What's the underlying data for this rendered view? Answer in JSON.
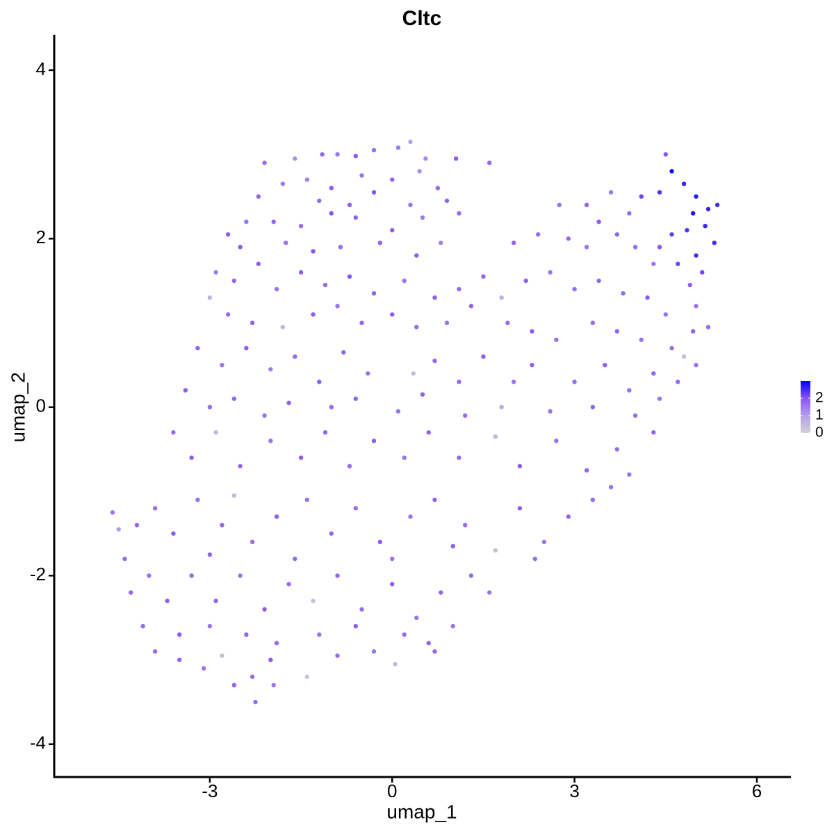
{
  "chart_data": {
    "type": "scatter",
    "title": "Cltc",
    "x_label": "umap_1",
    "y_label": "umap_2",
    "xlim": [
      -5.56,
      6.56
    ],
    "ylim": [
      -4.39,
      4.42
    ],
    "xticks": [
      -3,
      0,
      3,
      6
    ],
    "yticks": [
      -4,
      -2,
      0,
      2,
      4
    ],
    "colorlim": [
      0,
      3
    ],
    "colorticks": [
      0,
      1,
      2
    ],
    "color_stops": [
      "#d3d3d3",
      "#b39eec",
      "#8a55ef",
      "#0000ff"
    ],
    "points": [
      {
        "x": -2.1,
        "y": 2.9,
        "expression": 1.7
      },
      {
        "x": -1.6,
        "y": 2.95,
        "expression": 1.2
      },
      {
        "x": -1.15,
        "y": 3.0,
        "expression": 1.8
      },
      {
        "x": -0.9,
        "y": 3.0,
        "expression": 1.6
      },
      {
        "x": -0.6,
        "y": 2.98,
        "expression": 1.9
      },
      {
        "x": -0.3,
        "y": 3.05,
        "expression": 1.7
      },
      {
        "x": 0.1,
        "y": 3.08,
        "expression": 1.5
      },
      {
        "x": 0.3,
        "y": 3.15,
        "expression": 0.9
      },
      {
        "x": 0.55,
        "y": 2.95,
        "expression": 1.3
      },
      {
        "x": 1.05,
        "y": 2.95,
        "expression": 1.9
      },
      {
        "x": 1.6,
        "y": 2.9,
        "expression": 1.8
      },
      {
        "x": -1.8,
        "y": 2.65,
        "expression": 1.5
      },
      {
        "x": -1.4,
        "y": 2.7,
        "expression": 1.4
      },
      {
        "x": -1.0,
        "y": 2.6,
        "expression": 1.9
      },
      {
        "x": -0.5,
        "y": 2.75,
        "expression": 1.6
      },
      {
        "x": 0.0,
        "y": 2.7,
        "expression": 1.8
      },
      {
        "x": 0.45,
        "y": 2.8,
        "expression": 1.2
      },
      {
        "x": 0.75,
        "y": 2.6,
        "expression": 1.7
      },
      {
        "x": -2.2,
        "y": 2.5,
        "expression": 1.8
      },
      {
        "x": -1.2,
        "y": 2.45,
        "expression": 1.7
      },
      {
        "x": -0.7,
        "y": 2.4,
        "expression": 1.9
      },
      {
        "x": -0.3,
        "y": 2.55,
        "expression": 2.0
      },
      {
        "x": 0.3,
        "y": 2.4,
        "expression": 1.6
      },
      {
        "x": 0.9,
        "y": 2.45,
        "expression": 1.8
      },
      {
        "x": -2.7,
        "y": 2.05,
        "expression": 1.9
      },
      {
        "x": -2.4,
        "y": 2.2,
        "expression": 1.6
      },
      {
        "x": -1.95,
        "y": 2.2,
        "expression": 1.8
      },
      {
        "x": -1.5,
        "y": 2.15,
        "expression": 1.7
      },
      {
        "x": -1.0,
        "y": 2.3,
        "expression": 2.0
      },
      {
        "x": -0.6,
        "y": 2.25,
        "expression": 1.8
      },
      {
        "x": 0.0,
        "y": 2.1,
        "expression": 1.9
      },
      {
        "x": 0.5,
        "y": 2.25,
        "expression": 1.5
      },
      {
        "x": 1.1,
        "y": 2.3,
        "expression": 1.7
      },
      {
        "x": -2.5,
        "y": 1.9,
        "expression": 1.9
      },
      {
        "x": -1.75,
        "y": 1.95,
        "expression": 1.6
      },
      {
        "x": -1.3,
        "y": 1.85,
        "expression": 2.0
      },
      {
        "x": -0.85,
        "y": 1.9,
        "expression": 1.7
      },
      {
        "x": -0.2,
        "y": 1.95,
        "expression": 1.8
      },
      {
        "x": 0.4,
        "y": 1.8,
        "expression": 1.9
      },
      {
        "x": 0.8,
        "y": 1.95,
        "expression": 1.4
      },
      {
        "x": 2.0,
        "y": 1.95,
        "expression": 1.8
      },
      {
        "x": 2.4,
        "y": 2.05,
        "expression": 1.7
      },
      {
        "x": 2.75,
        "y": 2.4,
        "expression": 1.6
      },
      {
        "x": 3.2,
        "y": 2.4,
        "expression": 1.8
      },
      {
        "x": 3.6,
        "y": 2.55,
        "expression": 1.5
      },
      {
        "x": 3.4,
        "y": 2.2,
        "expression": 1.9
      },
      {
        "x": 3.9,
        "y": 2.3,
        "expression": 1.7
      },
      {
        "x": 4.1,
        "y": 2.5,
        "expression": 2.2
      },
      {
        "x": 4.4,
        "y": 2.55,
        "expression": 2.4
      },
      {
        "x": 4.5,
        "y": 3.0,
        "expression": 2.0
      },
      {
        "x": 4.6,
        "y": 2.8,
        "expression": 2.9
      },
      {
        "x": 4.8,
        "y": 2.65,
        "expression": 2.6
      },
      {
        "x": 5.0,
        "y": 2.5,
        "expression": 2.7
      },
      {
        "x": 5.2,
        "y": 2.35,
        "expression": 2.6
      },
      {
        "x": 5.35,
        "y": 2.4,
        "expression": 2.5
      },
      {
        "x": 4.95,
        "y": 2.3,
        "expression": 2.8
      },
      {
        "x": 5.15,
        "y": 2.15,
        "expression": 2.6
      },
      {
        "x": 5.3,
        "y": 1.95,
        "expression": 2.5
      },
      {
        "x": 4.85,
        "y": 2.1,
        "expression": 2.4
      },
      {
        "x": 4.6,
        "y": 2.05,
        "expression": 2.3
      },
      {
        "x": 5.0,
        "y": 1.8,
        "expression": 2.5
      },
      {
        "x": 4.7,
        "y": 1.7,
        "expression": 2.2
      },
      {
        "x": 4.4,
        "y": 1.9,
        "expression": 2.0
      },
      {
        "x": 4.0,
        "y": 1.9,
        "expression": 1.7
      },
      {
        "x": 3.7,
        "y": 2.05,
        "expression": 1.8
      },
      {
        "x": 3.2,
        "y": 1.9,
        "expression": 1.6
      },
      {
        "x": 2.9,
        "y": 2.0,
        "expression": 1.7
      },
      {
        "x": 5.1,
        "y": 1.6,
        "expression": 2.2
      },
      {
        "x": 4.9,
        "y": 1.45,
        "expression": 1.9
      },
      {
        "x": 4.3,
        "y": 1.7,
        "expression": 1.5
      },
      {
        "x": 4.8,
        "y": 0.6,
        "expression": 0.4
      },
      {
        "x": 4.95,
        "y": 0.9,
        "expression": 1.8
      },
      {
        "x": 5.2,
        "y": 0.95,
        "expression": 1.7
      },
      {
        "x": 5.0,
        "y": 1.2,
        "expression": 1.6
      },
      {
        "x": -3.0,
        "y": 1.3,
        "expression": 0.6
      },
      {
        "x": -2.9,
        "y": 1.6,
        "expression": 1.5
      },
      {
        "x": -2.6,
        "y": 1.5,
        "expression": 1.8
      },
      {
        "x": -2.2,
        "y": 1.7,
        "expression": 1.9
      },
      {
        "x": -1.9,
        "y": 1.4,
        "expression": 1.6
      },
      {
        "x": -1.5,
        "y": 1.6,
        "expression": 1.9
      },
      {
        "x": -1.1,
        "y": 1.45,
        "expression": 1.7
      },
      {
        "x": -0.7,
        "y": 1.55,
        "expression": 2.0
      },
      {
        "x": -0.3,
        "y": 1.35,
        "expression": 1.8
      },
      {
        "x": 0.2,
        "y": 1.5,
        "expression": 1.6
      },
      {
        "x": 0.7,
        "y": 1.3,
        "expression": 1.9
      },
      {
        "x": 1.1,
        "y": 1.4,
        "expression": 1.7
      },
      {
        "x": 1.5,
        "y": 1.55,
        "expression": 1.8
      },
      {
        "x": 1.8,
        "y": 1.3,
        "expression": 0.7
      },
      {
        "x": 2.2,
        "y": 1.5,
        "expression": 1.9
      },
      {
        "x": 2.6,
        "y": 1.6,
        "expression": 1.6
      },
      {
        "x": 3.0,
        "y": 1.4,
        "expression": 1.7
      },
      {
        "x": 3.4,
        "y": 1.5,
        "expression": 1.8
      },
      {
        "x": 3.8,
        "y": 1.35,
        "expression": 1.7
      },
      {
        "x": 4.2,
        "y": 1.3,
        "expression": 1.9
      },
      {
        "x": 4.5,
        "y": 1.1,
        "expression": 1.6
      },
      {
        "x": -2.7,
        "y": 1.1,
        "expression": 1.7
      },
      {
        "x": -2.3,
        "y": 1.0,
        "expression": 1.8
      },
      {
        "x": -1.8,
        "y": 0.95,
        "expression": 0.6
      },
      {
        "x": -1.3,
        "y": 1.1,
        "expression": 1.9
      },
      {
        "x": -0.9,
        "y": 1.2,
        "expression": 1.6
      },
      {
        "x": -0.5,
        "y": 1.0,
        "expression": 1.8
      },
      {
        "x": 0.0,
        "y": 1.1,
        "expression": 1.9
      },
      {
        "x": 0.4,
        "y": 0.95,
        "expression": 1.7
      },
      {
        "x": 0.9,
        "y": 1.0,
        "expression": 1.6
      },
      {
        "x": 1.3,
        "y": 1.2,
        "expression": 1.8
      },
      {
        "x": 1.9,
        "y": 1.0,
        "expression": 1.7
      },
      {
        "x": 2.3,
        "y": 0.9,
        "expression": 1.9
      },
      {
        "x": 2.7,
        "y": 0.8,
        "expression": 1.6
      },
      {
        "x": 3.3,
        "y": 1.0,
        "expression": 1.7
      },
      {
        "x": 3.7,
        "y": 0.9,
        "expression": 1.8
      },
      {
        "x": 4.1,
        "y": 0.8,
        "expression": 1.6
      },
      {
        "x": 4.6,
        "y": 0.7,
        "expression": 1.7
      },
      {
        "x": -3.2,
        "y": 0.7,
        "expression": 1.8
      },
      {
        "x": -2.8,
        "y": 0.5,
        "expression": 1.6
      },
      {
        "x": -2.4,
        "y": 0.7,
        "expression": 1.9
      },
      {
        "x": -2.0,
        "y": 0.45,
        "expression": 1.5
      },
      {
        "x": -1.6,
        "y": 0.6,
        "expression": 1.7
      },
      {
        "x": -1.2,
        "y": 0.3,
        "expression": 1.9
      },
      {
        "x": -0.8,
        "y": 0.65,
        "expression": 1.8
      },
      {
        "x": -0.4,
        "y": 0.4,
        "expression": 1.6
      },
      {
        "x": 0.35,
        "y": 0.4,
        "expression": 0.5
      },
      {
        "x": 0.7,
        "y": 0.55,
        "expression": 1.8
      },
      {
        "x": 1.1,
        "y": 0.3,
        "expression": 1.7
      },
      {
        "x": 1.5,
        "y": 0.6,
        "expression": 1.9
      },
      {
        "x": 2.0,
        "y": 0.3,
        "expression": 1.6
      },
      {
        "x": 2.3,
        "y": 0.5,
        "expression": 1.8
      },
      {
        "x": 3.0,
        "y": 0.3,
        "expression": 1.7
      },
      {
        "x": 3.5,
        "y": 0.5,
        "expression": 1.9
      },
      {
        "x": 3.9,
        "y": 0.2,
        "expression": 1.6
      },
      {
        "x": 4.3,
        "y": 0.4,
        "expression": 1.8
      },
      {
        "x": 4.7,
        "y": 0.3,
        "expression": 1.7
      },
      {
        "x": 5.0,
        "y": 0.5,
        "expression": 1.6
      },
      {
        "x": -3.4,
        "y": 0.2,
        "expression": 1.9
      },
      {
        "x": -3.0,
        "y": 0.0,
        "expression": 1.7
      },
      {
        "x": -2.6,
        "y": 0.1,
        "expression": 1.8
      },
      {
        "x": -2.1,
        "y": -0.1,
        "expression": 1.6
      },
      {
        "x": -1.7,
        "y": 0.05,
        "expression": 1.9
      },
      {
        "x": -1.0,
        "y": 0.0,
        "expression": 1.7
      },
      {
        "x": -0.6,
        "y": 0.1,
        "expression": 1.8
      },
      {
        "x": 0.1,
        "y": -0.05,
        "expression": 1.6
      },
      {
        "x": 0.5,
        "y": 0.15,
        "expression": 1.9
      },
      {
        "x": 1.2,
        "y": -0.1,
        "expression": 1.7
      },
      {
        "x": 1.8,
        "y": 0.0,
        "expression": 0.8
      },
      {
        "x": 2.6,
        "y": -0.05,
        "expression": 1.6
      },
      {
        "x": 3.3,
        "y": 0.0,
        "expression": 1.8
      },
      {
        "x": 4.0,
        "y": -0.1,
        "expression": 1.7
      },
      {
        "x": 4.4,
        "y": 0.1,
        "expression": 1.6
      },
      {
        "x": -3.6,
        "y": -0.3,
        "expression": 1.7
      },
      {
        "x": -3.3,
        "y": -0.6,
        "expression": 1.9
      },
      {
        "x": -2.9,
        "y": -0.3,
        "expression": 0.5
      },
      {
        "x": -2.5,
        "y": -0.7,
        "expression": 1.8
      },
      {
        "x": -2.0,
        "y": -0.4,
        "expression": 1.6
      },
      {
        "x": -1.5,
        "y": -0.6,
        "expression": 1.9
      },
      {
        "x": -1.1,
        "y": -0.3,
        "expression": 1.8
      },
      {
        "x": -0.7,
        "y": -0.7,
        "expression": 1.7
      },
      {
        "x": -0.3,
        "y": -0.4,
        "expression": 1.9
      },
      {
        "x": 0.2,
        "y": -0.6,
        "expression": 1.6
      },
      {
        "x": 0.6,
        "y": -0.3,
        "expression": 1.8
      },
      {
        "x": 1.1,
        "y": -0.6,
        "expression": 1.7
      },
      {
        "x": 1.7,
        "y": -0.35,
        "expression": 0.6
      },
      {
        "x": 2.1,
        "y": -0.7,
        "expression": 1.9
      },
      {
        "x": 2.7,
        "y": -0.4,
        "expression": 1.6
      },
      {
        "x": 3.2,
        "y": -0.75,
        "expression": 1.8
      },
      {
        "x": 3.7,
        "y": -0.5,
        "expression": 1.7
      },
      {
        "x": 3.9,
        "y": -0.8,
        "expression": 1.6
      },
      {
        "x": 4.3,
        "y": -0.3,
        "expression": 1.8
      },
      {
        "x": -4.6,
        "y": -1.25,
        "expression": 1.6
      },
      {
        "x": -4.5,
        "y": -1.45,
        "expression": 1.0
      },
      {
        "x": -4.2,
        "y": -1.4,
        "expression": 1.8
      },
      {
        "x": -3.9,
        "y": -1.2,
        "expression": 1.7
      },
      {
        "x": -3.6,
        "y": -1.5,
        "expression": 1.9
      },
      {
        "x": -3.2,
        "y": -1.1,
        "expression": 1.6
      },
      {
        "x": -2.8,
        "y": -1.4,
        "expression": 1.8
      },
      {
        "x": -2.6,
        "y": -1.05,
        "expression": 0.5
      },
      {
        "x": -2.3,
        "y": -1.6,
        "expression": 1.7
      },
      {
        "x": -1.9,
        "y": -1.3,
        "expression": 1.9
      },
      {
        "x": -1.4,
        "y": -1.1,
        "expression": 1.6
      },
      {
        "x": -1.0,
        "y": -1.5,
        "expression": 1.8
      },
      {
        "x": -0.6,
        "y": -1.2,
        "expression": 1.7
      },
      {
        "x": -0.2,
        "y": -1.6,
        "expression": 1.9
      },
      {
        "x": 0.3,
        "y": -1.3,
        "expression": 1.6
      },
      {
        "x": 0.7,
        "y": -1.1,
        "expression": 1.8
      },
      {
        "x": 1.2,
        "y": -1.4,
        "expression": 1.7
      },
      {
        "x": 1.7,
        "y": -1.7,
        "expression": 0.4
      },
      {
        "x": 2.1,
        "y": -1.2,
        "expression": 1.9
      },
      {
        "x": 2.5,
        "y": -1.6,
        "expression": 1.6
      },
      {
        "x": 2.9,
        "y": -1.3,
        "expression": 1.8
      },
      {
        "x": 3.3,
        "y": -1.1,
        "expression": 1.7
      },
      {
        "x": 3.6,
        "y": -0.95,
        "expression": 1.6
      },
      {
        "x": -4.4,
        "y": -1.8,
        "expression": 1.7
      },
      {
        "x": -3.0,
        "y": -1.75,
        "expression": 1.8
      },
      {
        "x": -1.6,
        "y": -1.8,
        "expression": 1.7
      },
      {
        "x": 0.0,
        "y": -1.8,
        "expression": 1.6
      },
      {
        "x": 1.0,
        "y": -1.65,
        "expression": 1.9
      },
      {
        "x": 2.35,
        "y": -1.8,
        "expression": 1.7
      },
      {
        "x": -4.3,
        "y": -2.2,
        "expression": 1.8
      },
      {
        "x": -4.0,
        "y": -2.0,
        "expression": 1.6
      },
      {
        "x": -3.7,
        "y": -2.3,
        "expression": 1.9
      },
      {
        "x": -3.3,
        "y": -2.0,
        "expression": 1.7
      },
      {
        "x": -2.9,
        "y": -2.3,
        "expression": 1.8
      },
      {
        "x": -2.5,
        "y": -2.0,
        "expression": 1.6
      },
      {
        "x": -2.1,
        "y": -2.4,
        "expression": 1.9
      },
      {
        "x": -1.7,
        "y": -2.1,
        "expression": 1.7
      },
      {
        "x": -1.3,
        "y": -2.3,
        "expression": 0.4
      },
      {
        "x": -0.9,
        "y": -2.0,
        "expression": 1.8
      },
      {
        "x": -0.5,
        "y": -2.4,
        "expression": 1.7
      },
      {
        "x": 0.0,
        "y": -2.1,
        "expression": 1.9
      },
      {
        "x": 0.4,
        "y": -2.5,
        "expression": 1.6
      },
      {
        "x": 0.8,
        "y": -2.2,
        "expression": 1.8
      },
      {
        "x": 1.3,
        "y": -2.0,
        "expression": 1.7
      },
      {
        "x": 1.6,
        "y": -2.2,
        "expression": 1.6
      },
      {
        "x": -4.1,
        "y": -2.6,
        "expression": 1.7
      },
      {
        "x": -3.5,
        "y": -2.7,
        "expression": 1.9
      },
      {
        "x": -3.0,
        "y": -2.6,
        "expression": 1.6
      },
      {
        "x": -2.4,
        "y": -2.7,
        "expression": 1.8
      },
      {
        "x": -1.9,
        "y": -2.8,
        "expression": 1.7
      },
      {
        "x": -1.2,
        "y": -2.7,
        "expression": 1.6
      },
      {
        "x": -0.6,
        "y": -2.6,
        "expression": 1.9
      },
      {
        "x": 0.2,
        "y": -2.7,
        "expression": 1.7
      },
      {
        "x": 0.6,
        "y": -2.8,
        "expression": 1.8
      },
      {
        "x": 1.0,
        "y": -2.6,
        "expression": 1.6
      },
      {
        "x": -3.9,
        "y": -2.9,
        "expression": 1.7
      },
      {
        "x": -3.5,
        "y": -3.0,
        "expression": 1.8
      },
      {
        "x": -3.1,
        "y": -3.1,
        "expression": 1.6
      },
      {
        "x": -2.8,
        "y": -2.95,
        "expression": 0.4
      },
      {
        "x": -2.3,
        "y": -3.2,
        "expression": 1.7
      },
      {
        "x": -2.0,
        "y": -3.0,
        "expression": 1.9
      },
      {
        "x": -1.4,
        "y": -3.2,
        "expression": 0.3
      },
      {
        "x": -0.9,
        "y": -2.95,
        "expression": 1.7
      },
      {
        "x": -0.3,
        "y": -2.9,
        "expression": 1.6
      },
      {
        "x": 0.05,
        "y": -3.05,
        "expression": 0.5
      },
      {
        "x": 0.7,
        "y": -2.9,
        "expression": 1.8
      },
      {
        "x": -2.25,
        "y": -3.5,
        "expression": 1.7
      },
      {
        "x": -2.6,
        "y": -3.3,
        "expression": 1.8
      },
      {
        "x": -1.95,
        "y": -3.3,
        "expression": 1.6
      }
    ]
  }
}
